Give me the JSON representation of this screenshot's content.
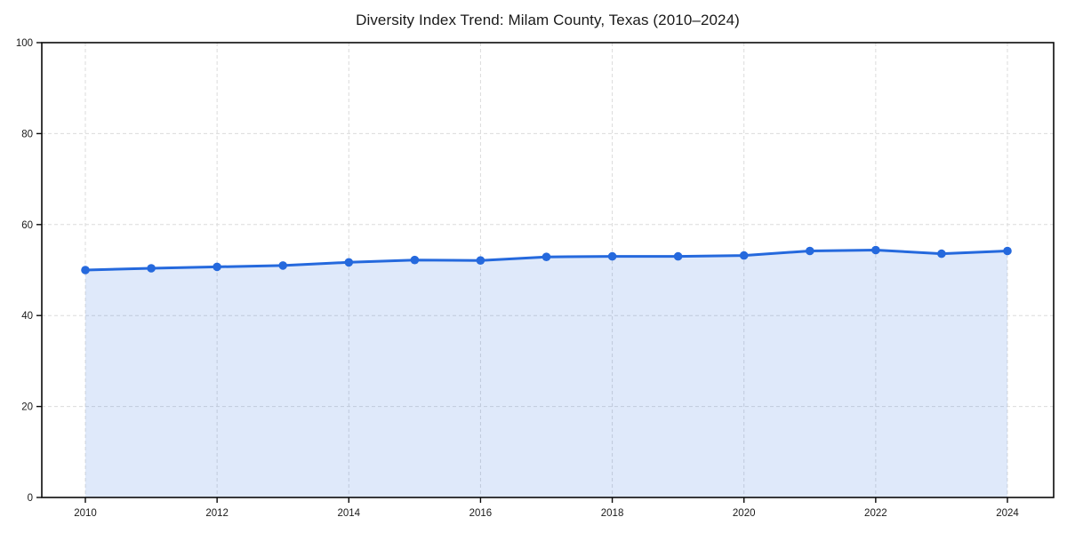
{
  "chart_data": {
    "type": "area",
    "title": "Diversity Index Trend: Milam County, Texas (2010–2024)",
    "x": [
      2010,
      2011,
      2012,
      2013,
      2014,
      2015,
      2016,
      2017,
      2018,
      2019,
      2020,
      2021,
      2022,
      2023,
      2024
    ],
    "values": [
      50.0,
      50.4,
      50.7,
      51.0,
      51.7,
      52.2,
      52.1,
      52.9,
      53.0,
      53.0,
      53.2,
      54.2,
      54.4,
      53.6,
      54.2
    ],
    "xlabel": "",
    "ylabel": "",
    "ylim": [
      0,
      100
    ],
    "y_tick_labels": [
      "0",
      "20",
      "40",
      "60",
      "80",
      "100"
    ],
    "x_tick_labels": [
      "2010",
      "2012",
      "2014",
      "2016",
      "2018",
      "2020",
      "2022",
      "2024"
    ],
    "grid": true,
    "grid_style": "dashed",
    "legend": false,
    "line_color": "#2569DD",
    "marker_color": "#2569DD",
    "fill_color": "#2569DD",
    "fill_opacity": 0.15,
    "grid_color": "#DBDBDB",
    "axis_color": "#0A0A0A",
    "text_color": "#1A1A1A"
  }
}
